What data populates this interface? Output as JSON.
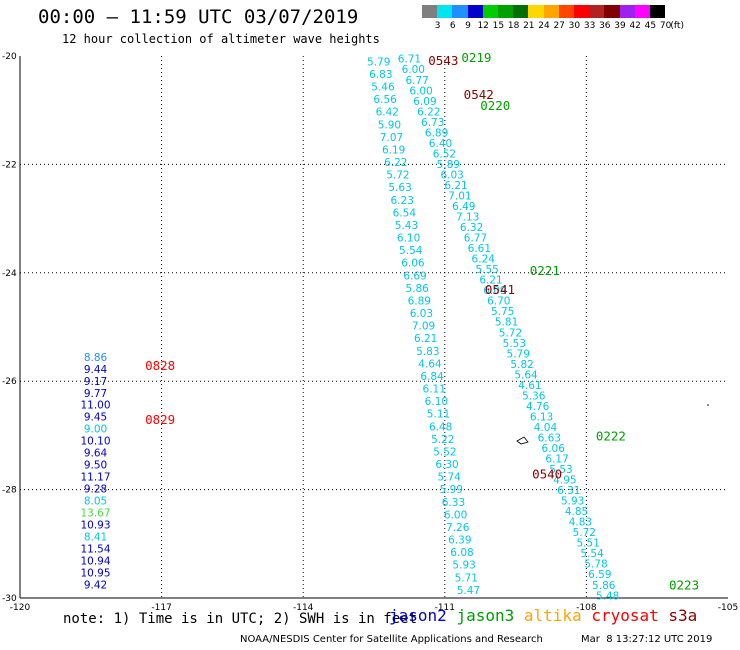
{
  "header": {
    "title": "00:00 – 11:59 UTC 03/07/2019",
    "subtitle": "12 hour collection of altimeter wave heights"
  },
  "legend": {
    "unit": "(ft)",
    "bins": [
      {
        "label": "3",
        "color": "#7f7f7f"
      },
      {
        "label": "6",
        "color": "#00e5ee"
      },
      {
        "label": "9",
        "color": "#1e90ff"
      },
      {
        "label": "12",
        "color": "#0000cd"
      },
      {
        "label": "15",
        "color": "#00cd00"
      },
      {
        "label": "18",
        "color": "#00a000"
      },
      {
        "label": "21",
        "color": "#007000"
      },
      {
        "label": "24",
        "color": "#ffd700"
      },
      {
        "label": "27",
        "color": "#ffa500"
      },
      {
        "label": "30",
        "color": "#ff4500"
      },
      {
        "label": "33",
        "color": "#ff0000"
      },
      {
        "label": "36",
        "color": "#b22222"
      },
      {
        "label": "39",
        "color": "#800000"
      },
      {
        "label": "42",
        "color": "#a020f0"
      },
      {
        "label": "45",
        "color": "#ff00ff"
      },
      {
        "label": "70",
        "color": "#000000"
      }
    ]
  },
  "map": {
    "lon_ticks": [
      "-120",
      "-117",
      "-114",
      "-111",
      "-108",
      "-105"
    ],
    "lat_ticks": [
      "-20",
      "-22",
      "-24",
      "-26",
      "-28",
      "-30"
    ],
    "lon_range": [
      -120,
      -105
    ],
    "lat_range": [
      -30,
      -20
    ],
    "colors": {
      "cyan": "#00c8e6",
      "blue": "#0000cd",
      "green": "#00a000",
      "lightgreen": "#44dd44",
      "red": "#ff0000",
      "darkred": "#8b0000",
      "skyblue": "#1e90ff"
    }
  },
  "passes": [
    {
      "color": "cyan",
      "start": [
        -112.4,
        -20.1
      ],
      "end": [
        -110.5,
        -29.85
      ],
      "values": [
        "5.79",
        "6.83",
        "5.46",
        "6.56",
        "6.42",
        "5.90",
        "7.07",
        "6.19",
        "6.22",
        "5.72",
        "5.63",
        "6.23",
        "6.54",
        "5.43",
        "6.10",
        "5.54",
        "6.06",
        "6.69",
        "5.86",
        "6.89",
        "6.03",
        "7.09",
        "6.21",
        "5.83",
        "4.64",
        "6.84",
        "6.11",
        "6.10",
        "5.11",
        "6.48",
        "5.22",
        "5.52",
        "6.30",
        "5.74",
        "5.99",
        "6.33",
        "6.00",
        "7.26",
        "6.39",
        "6.08",
        "5.93",
        "5.71",
        "5.47"
      ]
    },
    {
      "color": "cyan",
      "start": [
        -111.75,
        -20.05
      ],
      "end": [
        -107.55,
        -29.95
      ],
      "values": [
        "6.71",
        "6.00",
        "6.77",
        "6.00",
        "6.09",
        "6.22",
        "6.73",
        "6.89",
        "6.40",
        "6.52",
        "5.89",
        "6.03",
        "6.21",
        "7.01",
        "6.49",
        "7.13",
        "6.32",
        "6.77",
        "6.61",
        "6.24",
        "5.55",
        "6.21",
        "6.09",
        "6.70",
        "5.75",
        "5.81",
        "5.72",
        "5.53",
        "5.79",
        "5.82",
        "5.64",
        "4.61",
        "5.36",
        "4.76",
        "6.13",
        "4.04",
        "6.63",
        "6.06",
        "6.17",
        "5.53",
        "4.95",
        "6.31",
        "5.93",
        "4.85",
        "4.83",
        "5.72",
        "5.51",
        "5.54",
        "5.78",
        "6.59",
        "5.86",
        "5.48"
      ]
    },
    {
      "color": "blue",
      "start": [
        -118.4,
        -25.55
      ],
      "end": [
        -118.4,
        -29.75
      ],
      "values": [
        "8.86",
        "9.44",
        "9.17",
        "9.77",
        "11.00",
        "9.45",
        "9.00",
        "10.10",
        "9.64",
        "9.50",
        "11.17",
        "9.28",
        "8.05",
        "13.67",
        "10.93",
        "8.41",
        "11.54",
        "10.94",
        "10.95",
        "9.42"
      ],
      "value_colors": [
        "skyblue",
        "blue",
        "blue",
        "blue",
        "blue",
        "blue",
        "cyan",
        "blue",
        "blue",
        "blue",
        "blue",
        "blue",
        "cyan",
        "lightgreen",
        "blue",
        "cyan",
        "blue",
        "blue",
        "blue",
        "blue"
      ]
    }
  ],
  "time_labels": [
    {
      "text": "0219",
      "lon": -110.65,
      "lat": -20.02,
      "color": "green"
    },
    {
      "text": "0543",
      "lon": -111.35,
      "lat": -20.07,
      "color": "darkred"
    },
    {
      "text": "0542",
      "lon": -110.6,
      "lat": -20.7,
      "color": "darkred"
    },
    {
      "text": "0220",
      "lon": -110.25,
      "lat": -20.9,
      "color": "green"
    },
    {
      "text": "0221",
      "lon": -109.2,
      "lat": -23.95,
      "color": "green"
    },
    {
      "text": "0541",
      "lon": -110.15,
      "lat": -24.3,
      "color": "darkred"
    },
    {
      "text": "0828",
      "lon": -117.35,
      "lat": -25.7,
      "color": "red"
    },
    {
      "text": "0829",
      "lon": -117.35,
      "lat": -26.7,
      "color": "red"
    },
    {
      "text": "0222",
      "lon": -107.8,
      "lat": -27.0,
      "color": "green"
    },
    {
      "text": "0540",
      "lon": -109.15,
      "lat": -27.7,
      "color": "darkred"
    },
    {
      "text": "0223",
      "lon": -106.25,
      "lat": -29.75,
      "color": "green"
    }
  ],
  "note": "note: 1) Time is in UTC; 2) SWH is in feet",
  "satellites": [
    {
      "name": "jason2",
      "color": "#0000cd"
    },
    {
      "name": "jason3",
      "color": "#00a000"
    },
    {
      "name": "altika",
      "color": "#ffa500"
    },
    {
      "name": "cryosat",
      "color": "#ff0000"
    },
    {
      "name": "s3a",
      "color": "#8b0000"
    }
  ],
  "credit": "NOAA/NESDIS Center for Satellite Applications and Research",
  "timestamp": "Mar  8 13:27:12 UTC 2019"
}
